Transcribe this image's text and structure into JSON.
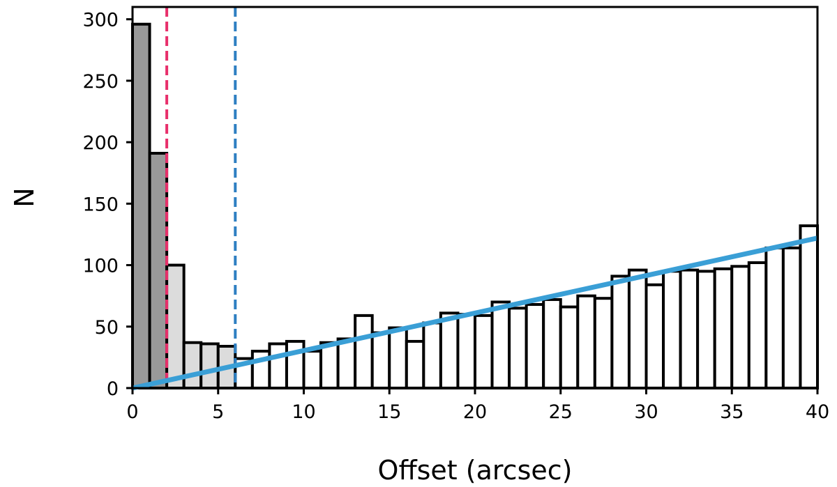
{
  "chart_data": {
    "type": "bar",
    "title": "",
    "xlabel": "Offset (arcsec)",
    "ylabel": "N",
    "xlim": [
      0,
      40
    ],
    "ylim": [
      0,
      310
    ],
    "xticks": [
      0,
      5,
      10,
      15,
      20,
      25,
      30,
      35,
      40
    ],
    "yticks": [
      0,
      50,
      100,
      150,
      200,
      250,
      300
    ],
    "bin_width": 1,
    "bins": [
      {
        "x": 0,
        "value": 296,
        "fill": "#999999"
      },
      {
        "x": 1,
        "value": 191,
        "fill": "#999999"
      },
      {
        "x": 2,
        "value": 100,
        "fill": "#dcdcdc"
      },
      {
        "x": 3,
        "value": 37,
        "fill": "#dcdcdc"
      },
      {
        "x": 4,
        "value": 36,
        "fill": "#dcdcdc"
      },
      {
        "x": 5,
        "value": 34,
        "fill": "#dcdcdc"
      },
      {
        "x": 6,
        "value": 24,
        "fill": "#ffffff"
      },
      {
        "x": 7,
        "value": 30,
        "fill": "#ffffff"
      },
      {
        "x": 8,
        "value": 36,
        "fill": "#ffffff"
      },
      {
        "x": 9,
        "value": 38,
        "fill": "#ffffff"
      },
      {
        "x": 10,
        "value": 30,
        "fill": "#ffffff"
      },
      {
        "x": 11,
        "value": 37,
        "fill": "#ffffff"
      },
      {
        "x": 12,
        "value": 40,
        "fill": "#ffffff"
      },
      {
        "x": 13,
        "value": 59,
        "fill": "#ffffff"
      },
      {
        "x": 14,
        "value": 45,
        "fill": "#ffffff"
      },
      {
        "x": 15,
        "value": 49,
        "fill": "#ffffff"
      },
      {
        "x": 16,
        "value": 38,
        "fill": "#ffffff"
      },
      {
        "x": 17,
        "value": 53,
        "fill": "#ffffff"
      },
      {
        "x": 18,
        "value": 61,
        "fill": "#ffffff"
      },
      {
        "x": 19,
        "value": 60,
        "fill": "#ffffff"
      },
      {
        "x": 20,
        "value": 59,
        "fill": "#ffffff"
      },
      {
        "x": 21,
        "value": 70,
        "fill": "#ffffff"
      },
      {
        "x": 22,
        "value": 65,
        "fill": "#ffffff"
      },
      {
        "x": 23,
        "value": 68,
        "fill": "#ffffff"
      },
      {
        "x": 24,
        "value": 72,
        "fill": "#ffffff"
      },
      {
        "x": 25,
        "value": 66,
        "fill": "#ffffff"
      },
      {
        "x": 26,
        "value": 75,
        "fill": "#ffffff"
      },
      {
        "x": 27,
        "value": 73,
        "fill": "#ffffff"
      },
      {
        "x": 28,
        "value": 91,
        "fill": "#ffffff"
      },
      {
        "x": 29,
        "value": 96,
        "fill": "#ffffff"
      },
      {
        "x": 30,
        "value": 84,
        "fill": "#ffffff"
      },
      {
        "x": 31,
        "value": 95,
        "fill": "#ffffff"
      },
      {
        "x": 32,
        "value": 96,
        "fill": "#ffffff"
      },
      {
        "x": 33,
        "value": 95,
        "fill": "#ffffff"
      },
      {
        "x": 34,
        "value": 97,
        "fill": "#ffffff"
      },
      {
        "x": 35,
        "value": 99,
        "fill": "#ffffff"
      },
      {
        "x": 36,
        "value": 102,
        "fill": "#ffffff"
      },
      {
        "x": 37,
        "value": 114,
        "fill": "#ffffff"
      },
      {
        "x": 38,
        "value": 114,
        "fill": "#ffffff"
      },
      {
        "x": 39,
        "value": 132,
        "fill": "#ffffff"
      }
    ],
    "fit_line": {
      "x": [
        0,
        40
      ],
      "y": [
        0,
        122
      ],
      "color": "#3a9fd6"
    },
    "vlines": [
      {
        "x": 2,
        "color": "#e8306b",
        "style": "dashed"
      },
      {
        "x": 6,
        "color": "#2e7fc2",
        "style": "dashed"
      }
    ],
    "grid": false,
    "colors": {
      "dark_bins": "#999999",
      "light_bins": "#dcdcdc",
      "open_bins": "#ffffff",
      "bin_edge": "#000000"
    }
  }
}
